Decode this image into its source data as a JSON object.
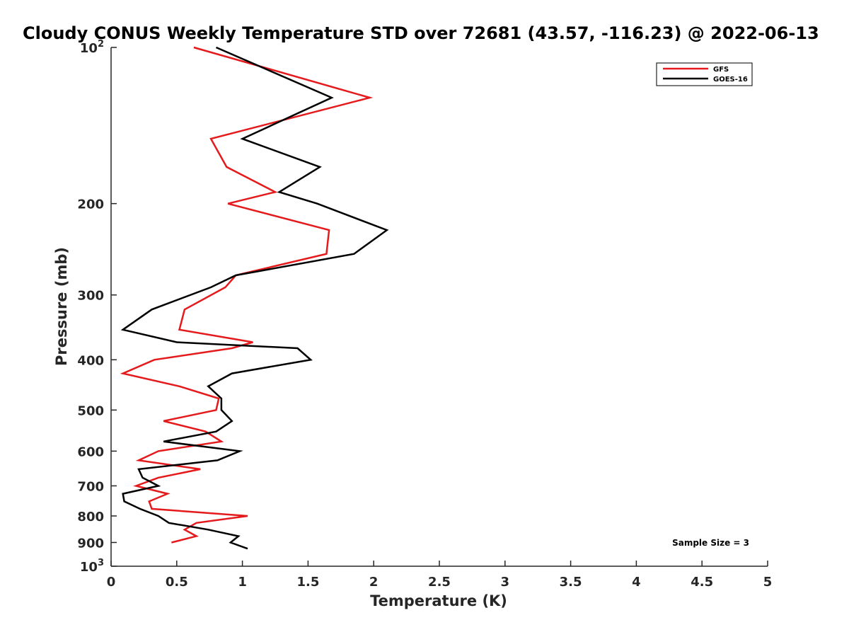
{
  "chart_data": {
    "type": "line",
    "title": "Cloudy CONUS Weekly Temperature STD over 72681 (43.57, -116.23) @ 2022-06-13",
    "xlabel": "Temperature (K)",
    "ylabel": "Pressure (mb)",
    "xlim": [
      0,
      5
    ],
    "ylim": [
      100,
      1000
    ],
    "y_scale": "log",
    "y_reversed": true,
    "x_ticks": [
      0,
      0.5,
      1,
      1.5,
      2,
      2.5,
      3,
      3.5,
      4,
      4.5,
      5
    ],
    "x_tick_labels": [
      "0",
      "0.5",
      "1",
      "1.5",
      "2",
      "2.5",
      "3",
      "3.5",
      "4",
      "4.5",
      "5"
    ],
    "y_ticks": [
      {
        "value": 100,
        "base": "10",
        "exp": "2"
      },
      {
        "value": 200,
        "label": "200"
      },
      {
        "value": 300,
        "label": "300"
      },
      {
        "value": 400,
        "label": "400"
      },
      {
        "value": 500,
        "label": "500"
      },
      {
        "value": 600,
        "label": "600"
      },
      {
        "value": 700,
        "label": "700"
      },
      {
        "value": 800,
        "label": "800"
      },
      {
        "value": 900,
        "label": "900"
      },
      {
        "value": 1000,
        "base": "10",
        "exp": "3"
      }
    ],
    "legend_position": "top-right",
    "annotation": "Sample Size = 3",
    "series": [
      {
        "name": "GFS",
        "color": "#e41a1c",
        "points": [
          [
            0.63,
            100
          ],
          [
            1.97,
            125
          ],
          [
            0.76,
            150
          ],
          [
            0.88,
            170
          ],
          [
            1.25,
            190
          ],
          [
            0.89,
            200
          ],
          [
            1.66,
            225
          ],
          [
            1.64,
            250
          ],
          [
            0.95,
            275
          ],
          [
            0.87,
            290
          ],
          [
            0.56,
            320
          ],
          [
            0.52,
            350
          ],
          [
            1.08,
            370
          ],
          [
            0.92,
            380
          ],
          [
            0.33,
            400
          ],
          [
            0.09,
            425
          ],
          [
            0.52,
            450
          ],
          [
            0.82,
            475
          ],
          [
            0.8,
            500
          ],
          [
            0.4,
            525
          ],
          [
            0.72,
            550
          ],
          [
            0.84,
            575
          ],
          [
            0.36,
            600
          ],
          [
            0.21,
            625
          ],
          [
            0.68,
            650
          ],
          [
            0.36,
            675
          ],
          [
            0.19,
            700
          ],
          [
            0.43,
            725
          ],
          [
            0.29,
            750
          ],
          [
            0.31,
            775
          ],
          [
            1.04,
            800
          ],
          [
            0.65,
            825
          ],
          [
            0.56,
            850
          ],
          [
            0.65,
            875
          ],
          [
            0.46,
            900
          ]
        ]
      },
      {
        "name": "GOES-16",
        "color": "#000000",
        "points": [
          [
            0.8,
            100
          ],
          [
            1.68,
            125
          ],
          [
            1.0,
            150
          ],
          [
            1.59,
            170
          ],
          [
            1.28,
            190
          ],
          [
            1.57,
            200
          ],
          [
            2.1,
            225
          ],
          [
            1.85,
            250
          ],
          [
            0.95,
            275
          ],
          [
            0.76,
            290
          ],
          [
            0.31,
            320
          ],
          [
            0.09,
            350
          ],
          [
            0.5,
            370
          ],
          [
            1.42,
            380
          ],
          [
            1.52,
            400
          ],
          [
            0.92,
            425
          ],
          [
            0.74,
            450
          ],
          [
            0.84,
            475
          ],
          [
            0.84,
            500
          ],
          [
            0.92,
            525
          ],
          [
            0.8,
            550
          ],
          [
            0.4,
            575
          ],
          [
            0.98,
            600
          ],
          [
            0.81,
            625
          ],
          [
            0.21,
            650
          ],
          [
            0.24,
            675
          ],
          [
            0.36,
            700
          ],
          [
            0.09,
            725
          ],
          [
            0.1,
            750
          ],
          [
            0.22,
            775
          ],
          [
            0.36,
            800
          ],
          [
            0.44,
            825
          ],
          [
            0.74,
            850
          ],
          [
            0.97,
            875
          ],
          [
            0.91,
            900
          ],
          [
            1.04,
            925
          ]
        ]
      }
    ]
  }
}
